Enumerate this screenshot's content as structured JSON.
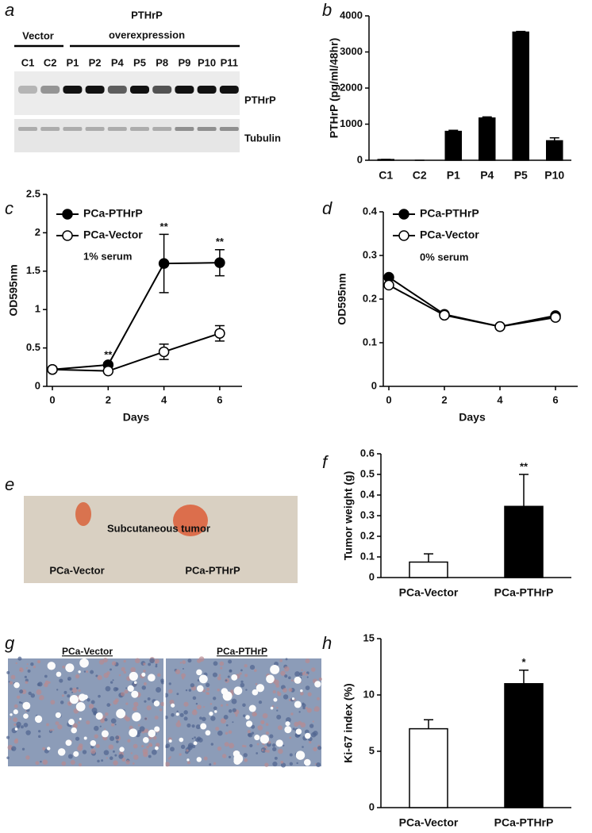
{
  "panel_a": {
    "panel_label": "a",
    "vector_label": "Vector",
    "overexpression_label": [
      "PTHrP",
      "overexpression"
    ],
    "lanes": [
      "C1",
      "C2",
      "P1",
      "P2",
      "P4",
      "P5",
      "P8",
      "P9",
      "P10",
      "P11"
    ],
    "bands": [
      "PTHrP",
      "Tubulin"
    ]
  },
  "panel_e": {
    "panel_label": "e",
    "caption": "Subcutaneous tumor",
    "labels": [
      "PCa-Vector",
      "PCa-PTHrP"
    ]
  },
  "panel_g": {
    "panel_label": "g",
    "labels": [
      "PCa-Vector",
      "PCa-PTHrP"
    ]
  },
  "chart_data": [
    {
      "panel_label": "b",
      "type": "bar",
      "y_label": "PTHrP (pg/ml/48hr)",
      "categories": [
        "C1",
        "C2",
        "P1",
        "P4",
        "P5",
        "P10"
      ],
      "values": [
        20,
        0,
        800,
        1170,
        3550,
        540
      ],
      "errors": [
        5,
        0,
        30,
        30,
        20,
        80
      ],
      "color": "#000000",
      "ylim": [
        0,
        4000
      ],
      "yticks": [
        0,
        1000,
        2000,
        3000,
        4000
      ]
    },
    {
      "panel_label": "c",
      "type": "line",
      "x_label": "Days",
      "y_label": "OD595nm",
      "note": "1% serum",
      "x": [
        0,
        2,
        4,
        6
      ],
      "xlim": [
        -0.2,
        6.8
      ],
      "xticks": [
        0,
        2,
        4,
        6
      ],
      "ylim": [
        0,
        2.5
      ],
      "yticks": [
        0,
        0.5,
        1,
        1.5,
        2,
        2.5
      ],
      "significance": [
        null,
        "**",
        "**",
        "**"
      ],
      "series": [
        {
          "name": "PCa-PTHrP",
          "color": "#000000",
          "marker_fill": "#000000",
          "values": [
            0.22,
            0.28,
            1.6,
            1.61
          ],
          "errors": [
            0.02,
            0.03,
            0.38,
            0.17
          ]
        },
        {
          "name": "PCa-Vector",
          "color": "#000000",
          "marker_fill": "#ffffff",
          "values": [
            0.22,
            0.2,
            0.45,
            0.69
          ],
          "errors": [
            0.02,
            0.02,
            0.1,
            0.1
          ]
        }
      ]
    },
    {
      "panel_label": "d",
      "type": "line",
      "x_label": "Days",
      "y_label": "OD595nm",
      "note": "0% serum",
      "x": [
        0,
        2,
        4,
        6
      ],
      "xlim": [
        -0.2,
        6.8
      ],
      "xticks": [
        0,
        2,
        4,
        6
      ],
      "ylim": [
        0,
        0.4
      ],
      "yticks": [
        0,
        0.1,
        0.2,
        0.3,
        0.4
      ],
      "series": [
        {
          "name": "PCa-PTHrP",
          "color": "#000000",
          "marker_fill": "#000000",
          "values": [
            0.25,
            0.165,
            0.137,
            0.162
          ]
        },
        {
          "name": "PCa-Vector",
          "color": "#000000",
          "marker_fill": "#ffffff",
          "values": [
            0.232,
            0.163,
            0.137,
            0.158
          ]
        }
      ]
    },
    {
      "panel_label": "f",
      "type": "bar",
      "y_label": "Tumor weight (g)",
      "categories": [
        "PCa-Vector",
        "PCa-PTHrP"
      ],
      "values": [
        0.075,
        0.345
      ],
      "errors": [
        0.04,
        0.155
      ],
      "colors": [
        "#ffffff",
        "#000000"
      ],
      "significance": [
        null,
        "**"
      ],
      "ylim": [
        0,
        0.6
      ],
      "yticks": [
        0,
        0.1,
        0.2,
        0.3,
        0.4,
        0.5,
        0.6
      ]
    },
    {
      "panel_label": "h",
      "type": "bar",
      "y_label": "Ki-67 index (%)",
      "categories": [
        "PCa-Vector",
        "PCa-PTHrP"
      ],
      "values": [
        7,
        11
      ],
      "errors": [
        0.8,
        1.2
      ],
      "colors": [
        "#ffffff",
        "#000000"
      ],
      "significance": [
        null,
        "*"
      ],
      "ylim": [
        0,
        15
      ],
      "yticks": [
        0,
        5,
        10,
        15
      ]
    }
  ]
}
